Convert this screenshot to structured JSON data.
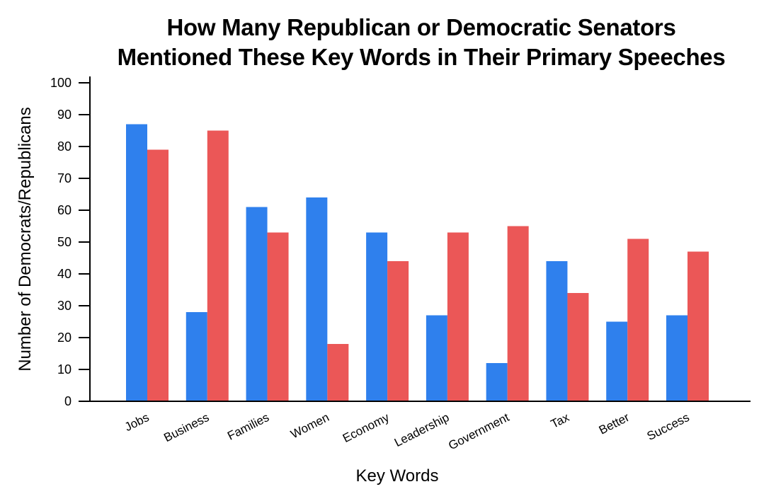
{
  "chart_data": {
    "type": "bar",
    "title_lines": [
      "How Many Republican or Democratic Senators",
      "Mentioned These Key Words in Their Primary Speeches"
    ],
    "xlabel": "Key Words",
    "ylabel": "Number of Democrats/Republicans",
    "categories": [
      "Jobs",
      "Business",
      "Families",
      "Women",
      "Economy",
      "Leadership",
      "Government",
      "Tax",
      "Better",
      "Success"
    ],
    "series": [
      {
        "values": [
          87,
          28,
          61,
          64,
          53,
          27,
          12,
          44,
          25,
          27
        ],
        "color": "#2f80ed"
      },
      {
        "values": [
          79,
          85,
          53,
          18,
          44,
          53,
          55,
          34,
          51,
          47
        ],
        "color": "#eb5757"
      }
    ],
    "yticks": [
      0,
      10,
      20,
      30,
      40,
      50,
      60,
      70,
      80,
      90,
      100
    ],
    "ylim": [
      0,
      100
    ],
    "grid": false,
    "legend": "none"
  }
}
